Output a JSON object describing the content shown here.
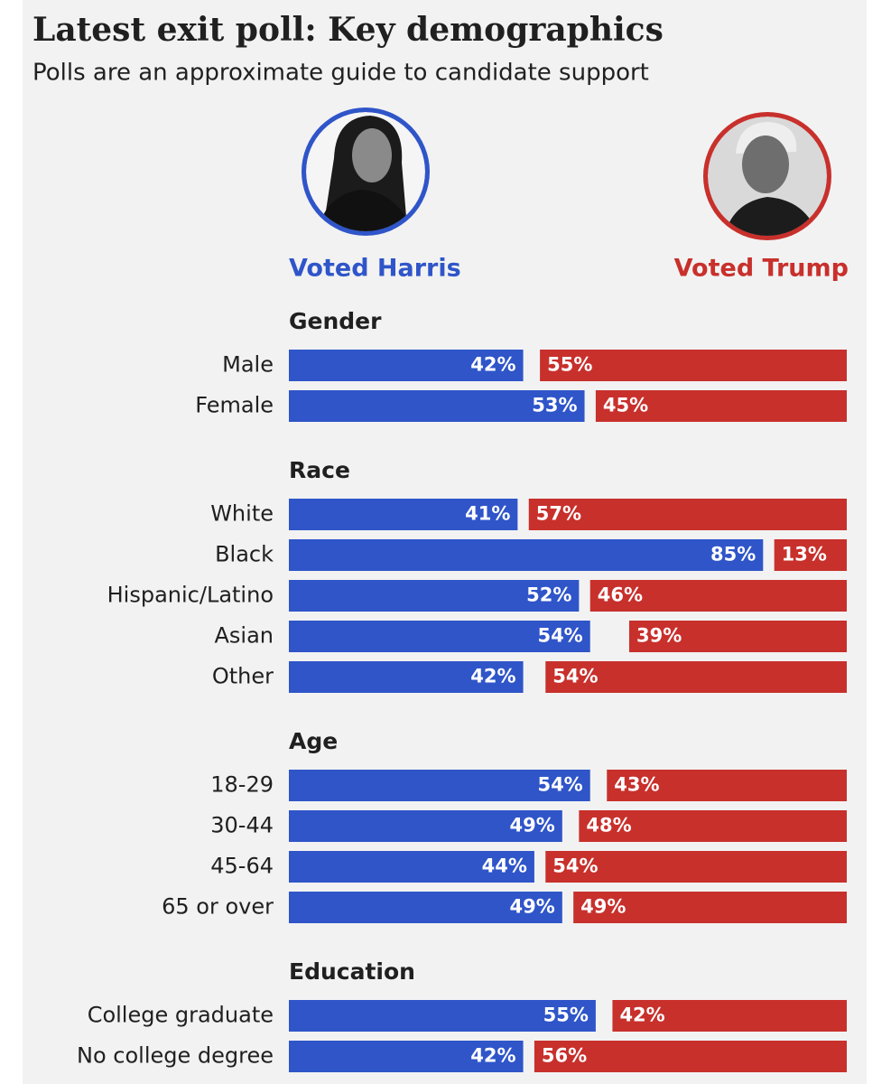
{
  "chart_data": {
    "type": "diverging_bar",
    "title": "Latest exit poll: Key demographics",
    "subtitle": "Polls are an approximate guide to candidate support",
    "xlim": [
      0,
      100
    ],
    "series": [
      {
        "name": "Voted Harris",
        "color": "#2f55c9"
      },
      {
        "name": "Voted Trump",
        "color": "#c8302c"
      }
    ],
    "groups": [
      {
        "name": "Gender",
        "categories": [
          "Male",
          "Female"
        ],
        "series": [
          {
            "values": [
              42,
              53
            ],
            "value_labels": [
              "42%",
              "53%"
            ]
          },
          {
            "values": [
              55,
              45
            ],
            "value_labels": [
              "55%",
              "45%"
            ]
          }
        ]
      },
      {
        "name": "Race",
        "categories": [
          "White",
          "Black",
          "Hispanic/Latino",
          "Asian",
          "Other"
        ],
        "series": [
          {
            "values": [
              41,
              85,
              52,
              54,
              42
            ],
            "value_labels": [
              "41%",
              "85%",
              "52%",
              "54%",
              "42%"
            ]
          },
          {
            "values": [
              57,
              13,
              46,
              39,
              54
            ],
            "value_labels": [
              "57%",
              "13%",
              "46%",
              "39%",
              "54%"
            ]
          }
        ]
      },
      {
        "name": "Age",
        "categories": [
          "18-29",
          "30-44",
          "45-64",
          "65 or over"
        ],
        "series": [
          {
            "values": [
              54,
              49,
              44,
              49
            ],
            "value_labels": [
              "54%",
              "49%",
              "44%",
              "49%"
            ]
          },
          {
            "values": [
              43,
              48,
              54,
              49
            ],
            "value_labels": [
              "43%",
              "48%",
              "54%",
              "49%"
            ]
          }
        ]
      },
      {
        "name": "Education",
        "categories": [
          "College graduate",
          "No college degree"
        ],
        "series": [
          {
            "values": [
              55,
              42
            ],
            "value_labels": [
              "55%",
              "42%"
            ]
          },
          {
            "values": [
              42,
              56
            ],
            "value_labels": [
              "42%",
              "56%"
            ]
          }
        ]
      }
    ]
  }
}
